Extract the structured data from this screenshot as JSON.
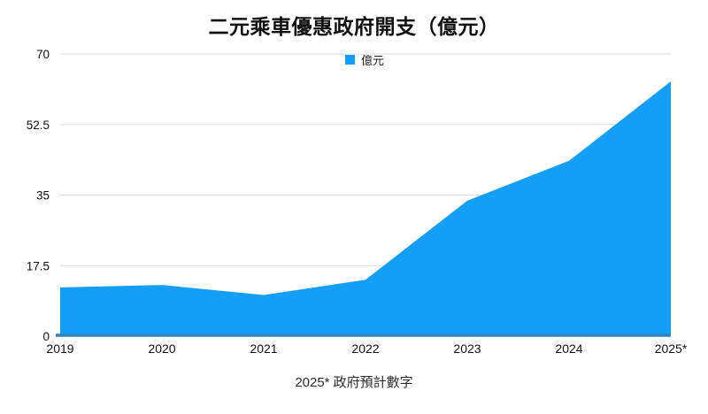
{
  "chart_data": {
    "type": "area",
    "title": "二元乘車優惠政府開支（億元）",
    "categories": [
      "2019",
      "2020",
      "2021",
      "2022",
      "2023",
      "2024",
      "2025*"
    ],
    "series": [
      {
        "name": "億元",
        "values": [
          12.1,
          12.7,
          10.2,
          14.0,
          33.6,
          43.5,
          63.2
        ]
      }
    ],
    "ylim": [
      0,
      70
    ],
    "yticks": [
      0,
      17.5,
      35,
      52.5,
      70
    ],
    "ytick_labels": [
      "0",
      "17.5",
      "35",
      "52.5",
      "70"
    ],
    "grid": "horizontal-only",
    "legend_position": "top-center",
    "footnote": "2025* 政府預計數字",
    "colors": {
      "area_fill": "#149EF7",
      "axis_line": "#2F82BB",
      "gridline": "#DBDBDB",
      "tick_text": "#111111"
    }
  }
}
